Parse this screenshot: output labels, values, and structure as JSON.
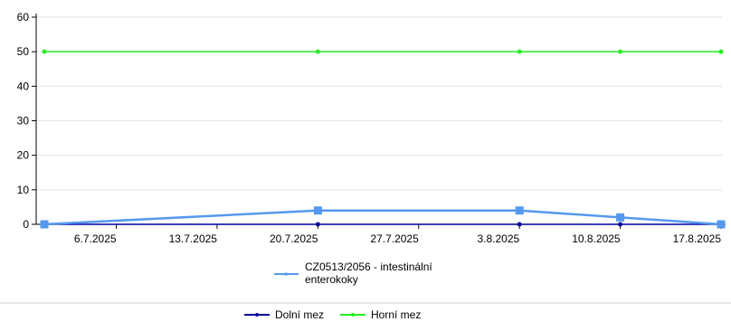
{
  "chart_data": {
    "type": "line",
    "ylim": [
      0,
      60
    ],
    "yticks": [
      0,
      10,
      20,
      30,
      40,
      50,
      60
    ],
    "xticks": [
      "2025-07-06",
      "2025-07-13",
      "2025-07-20",
      "2025-07-27",
      "2025-08-03",
      "2025-08-10",
      "2025-08-17"
    ],
    "xtick_labels": [
      "6.7.2025",
      "13.7.2025",
      "20.7.2025",
      "27.7.2025",
      "3.8.2025",
      "10.8.2025",
      "17.8.2025"
    ],
    "grid": "horizontal",
    "series": [
      {
        "name": "CZ0513/2056 - intestinální enterokoky",
        "color": "#5599ee",
        "marker": "square",
        "x": [
          "2025-07-01",
          "2025-07-20",
          "2025-08-03",
          "2025-08-10",
          "2025-08-17"
        ],
        "values": [
          0,
          4,
          4,
          2,
          0
        ]
      },
      {
        "name": "Dolní mez",
        "color": "#000099",
        "marker": "circle",
        "x": [
          "2025-07-01",
          "2025-07-20",
          "2025-08-03",
          "2025-08-10",
          "2025-08-17"
        ],
        "values": [
          0,
          0,
          0,
          0,
          0
        ]
      },
      {
        "name": "Horní mez",
        "color": "#22ee22",
        "marker": "circle",
        "x": [
          "2025-07-01",
          "2025-07-20",
          "2025-08-03",
          "2025-08-10",
          "2025-08-17"
        ],
        "values": [
          50,
          50,
          50,
          50,
          50
        ]
      }
    ],
    "legend": {
      "position": "bottom",
      "main_label_lines": [
        "CZ0513/2056 - intestinální",
        "enterokoky"
      ],
      "limit_labels": [
        "Dolní mez",
        "Horní mez"
      ]
    }
  }
}
